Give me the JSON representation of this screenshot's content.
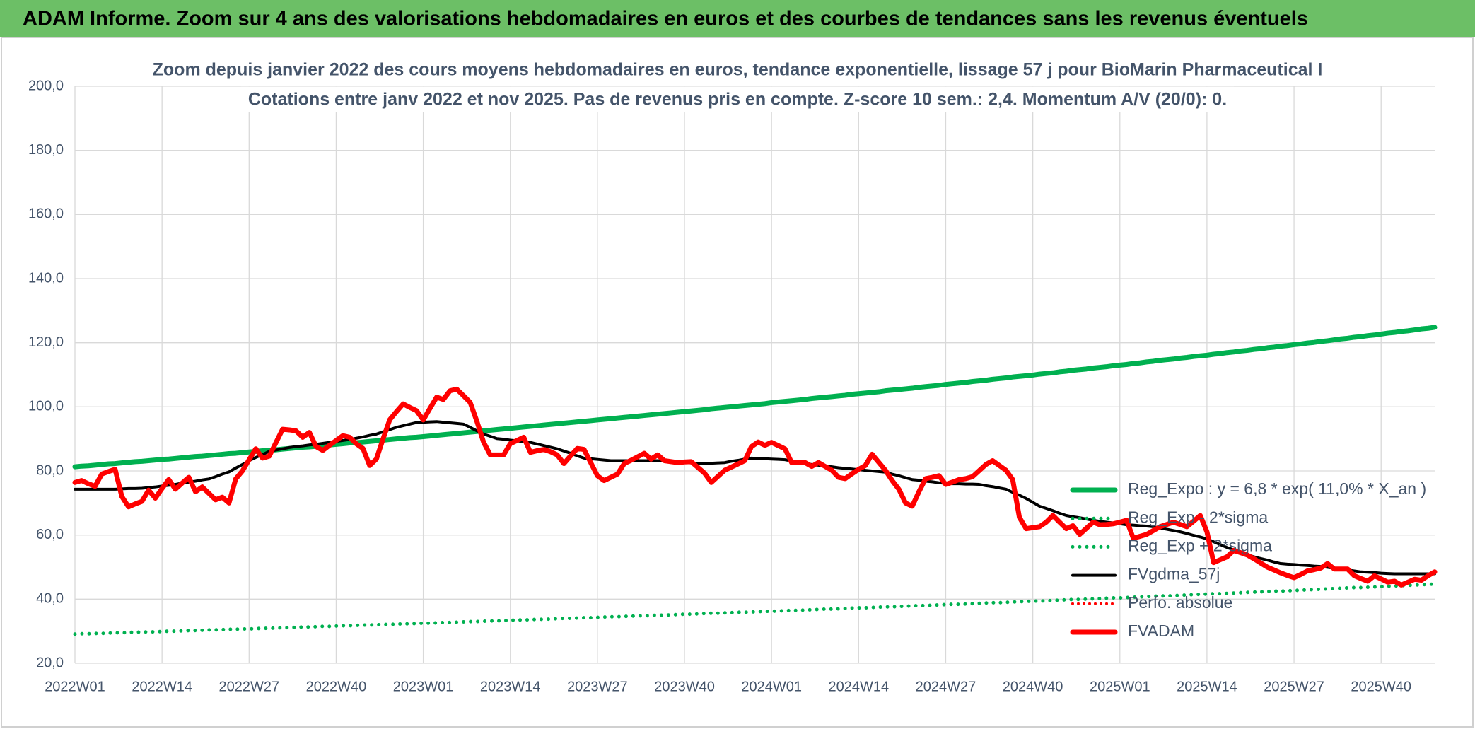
{
  "chart_data": {
    "type": "line",
    "title": "ADAM Informe. Zoom sur 4 ans des valorisations hebdomadaires en euros et des courbes de tendances sans les revenus éventuels",
    "subtitle": [
      "Zoom depuis janvier 2022 des cours moyens hebdomadaires en euros, tendance exponentielle, lissage 57 j pour BioMarin Pharmaceutical I",
      "Cotations entre janv 2022 et nov 2025. Pas de revenus pris en compte. Z-score 10 sem.: 2,4. Momentum A/V (20/0): 0."
    ],
    "ylim": [
      20,
      200
    ],
    "yticks": [
      {
        "value": 20,
        "label": "20,0"
      },
      {
        "value": 40,
        "label": "40,0"
      },
      {
        "value": 60,
        "label": "60,0"
      },
      {
        "value": 80,
        "label": "80,0"
      },
      {
        "value": 100,
        "label": "100,0"
      },
      {
        "value": 120,
        "label": "120,0"
      },
      {
        "value": 140,
        "label": "140,0"
      },
      {
        "value": 160,
        "label": "160,0"
      },
      {
        "value": 180,
        "label": "180,0"
      },
      {
        "value": 200,
        "label": "200,0"
      }
    ],
    "grid": true,
    "legend": "right",
    "categories": [
      "2022W01",
      null,
      null,
      null,
      null,
      null,
      null,
      null,
      null,
      null,
      null,
      null,
      null,
      "2022W14",
      null,
      null,
      null,
      null,
      null,
      null,
      null,
      null,
      null,
      null,
      null,
      null,
      "2022W27",
      null,
      null,
      null,
      null,
      null,
      null,
      null,
      null,
      null,
      null,
      null,
      null,
      "2022W40",
      null,
      null,
      null,
      null,
      null,
      null,
      null,
      null,
      null,
      null,
      null,
      null,
      "2023W01",
      null,
      null,
      null,
      null,
      null,
      null,
      null,
      null,
      null,
      null,
      null,
      null,
      "2023W14",
      null,
      null,
      null,
      null,
      null,
      null,
      null,
      null,
      null,
      null,
      null,
      null,
      "2023W27",
      null,
      null,
      null,
      null,
      null,
      null,
      null,
      null,
      null,
      null,
      null,
      null,
      "2023W40",
      null,
      null,
      null,
      null,
      null,
      null,
      null,
      null,
      null,
      null,
      null,
      null,
      "2024W01",
      null,
      null,
      null,
      null,
      null,
      null,
      null,
      null,
      null,
      null,
      null,
      null,
      "2024W14",
      null,
      null,
      null,
      null,
      null,
      null,
      null,
      null,
      null,
      null,
      null,
      null,
      "2024W27",
      null,
      null,
      null,
      null,
      null,
      null,
      null,
      null,
      null,
      null,
      null,
      null,
      "2024W40",
      null,
      null,
      null,
      null,
      null,
      null,
      null,
      null,
      null,
      null,
      null,
      null,
      "2025W01",
      null,
      null,
      null,
      null,
      null,
      null,
      null,
      null,
      null,
      null,
      null,
      null,
      "2025W14",
      null,
      null,
      null,
      null,
      null,
      null,
      null,
      null,
      null,
      null,
      null,
      null,
      "2025W27",
      null,
      null,
      null,
      null,
      null,
      null,
      null,
      null,
      null,
      null,
      null,
      null,
      "2025W40",
      null,
      null,
      null,
      null,
      null,
      null,
      null,
      null
    ],
    "series": [
      {
        "name": "Reg_Expo : y = 6,8 * exp( 11,0% *  X_an )",
        "color": "#00b050",
        "style": "solid",
        "width": 7,
        "values": [
          81.3,
          81.5,
          81.6,
          81.8,
          82.0,
          82.2,
          82.3,
          82.5,
          82.7,
          82.9,
          83.0,
          83.2,
          83.4,
          83.6,
          83.7,
          83.9,
          84.1,
          84.3,
          84.5,
          84.6,
          84.8,
          85.0,
          85.2,
          85.4,
          85.5,
          85.7,
          85.9,
          86.1,
          86.3,
          86.4,
          86.6,
          86.8,
          87.0,
          87.2,
          87.4,
          87.5,
          87.7,
          87.9,
          88.1,
          88.3,
          88.5,
          88.7,
          88.8,
          89.0,
          89.2,
          89.4,
          89.6,
          89.8,
          90.0,
          90.2,
          90.4,
          90.5,
          90.7,
          90.9,
          91.1,
          91.3,
          91.5,
          91.7,
          91.9,
          92.1,
          92.3,
          92.5,
          92.7,
          92.9,
          93.1,
          93.3,
          93.5,
          93.7,
          93.9,
          94.1,
          94.3,
          94.5,
          94.7,
          94.9,
          95.1,
          95.3,
          95.5,
          95.7,
          95.9,
          96.1,
          96.3,
          96.5,
          96.7,
          96.9,
          97.1,
          97.3,
          97.5,
          97.7,
          97.9,
          98.1,
          98.3,
          98.5,
          98.7,
          98.9,
          99.1,
          99.4,
          99.6,
          99.8,
          100.0,
          100.2,
          100.4,
          100.6,
          100.8,
          101.0,
          101.3,
          101.5,
          101.7,
          101.9,
          102.1,
          102.3,
          102.6,
          102.8,
          103.0,
          103.2,
          103.4,
          103.6,
          103.9,
          104.1,
          104.3,
          104.5,
          104.7,
          105.0,
          105.2,
          105.4,
          105.6,
          105.8,
          106.1,
          106.3,
          106.5,
          106.7,
          107.0,
          107.2,
          107.4,
          107.6,
          107.9,
          108.1,
          108.3,
          108.6,
          108.8,
          109.0,
          109.3,
          109.5,
          109.7,
          109.9,
          110.2,
          110.4,
          110.6,
          110.9,
          111.1,
          111.4,
          111.6,
          111.8,
          112.1,
          112.3,
          112.5,
          112.8,
          113.0,
          113.2,
          113.5,
          113.7,
          114.0,
          114.2,
          114.5,
          114.7,
          114.9,
          115.2,
          115.4,
          115.7,
          115.9,
          116.1,
          116.4,
          116.6,
          116.9,
          117.1,
          117.4,
          117.6,
          117.9,
          118.1,
          118.4,
          118.6,
          118.9,
          119.1,
          119.4,
          119.6,
          119.9,
          120.1,
          120.4,
          120.6,
          120.9,
          121.2,
          121.4,
          121.7,
          121.9,
          122.2,
          122.4,
          122.7,
          123.0,
          123.2,
          123.5,
          123.7,
          124.0,
          124.3,
          124.5,
          124.8
        ]
      },
      {
        "name": "Reg_Exp - 2*sigma",
        "color": "#00b050",
        "style": "dotted",
        "width": 5,
        "values": [
          29.1,
          29.2,
          29.2,
          29.3,
          29.3,
          29.4,
          29.5,
          29.5,
          29.6,
          29.7,
          29.7,
          29.8,
          29.8,
          29.9,
          30.0,
          30.0,
          30.1,
          30.2,
          30.2,
          30.3,
          30.4,
          30.4,
          30.5,
          30.6,
          30.6,
          30.7,
          30.7,
          30.8,
          30.9,
          30.9,
          31.0,
          31.1,
          31.1,
          31.2,
          31.3,
          31.3,
          31.4,
          31.5,
          31.5,
          31.6,
          31.7,
          31.7,
          31.8,
          31.9,
          31.9,
          32.0,
          32.1,
          32.1,
          32.2,
          32.3,
          32.3,
          32.4,
          32.5,
          32.5,
          32.6,
          32.7,
          32.7,
          32.8,
          32.9,
          33.0,
          33.0,
          33.1,
          33.2,
          33.2,
          33.3,
          33.4,
          33.5,
          33.5,
          33.6,
          33.7,
          33.7,
          33.8,
          33.9,
          34.0,
          34.0,
          34.1,
          34.2,
          34.2,
          34.3,
          34.4,
          34.5,
          34.5,
          34.6,
          34.7,
          34.8,
          34.8,
          34.9,
          35.0,
          35.0,
          35.1,
          35.2,
          35.3,
          35.3,
          35.4,
          35.5,
          35.6,
          35.6,
          35.7,
          35.8,
          35.9,
          35.9,
          36.0,
          36.1,
          36.2,
          36.2,
          36.3,
          36.4,
          36.5,
          36.5,
          36.6,
          36.7,
          36.8,
          36.9,
          36.9,
          37.0,
          37.1,
          37.2,
          37.3,
          37.3,
          37.4,
          37.5,
          37.6,
          37.6,
          37.7,
          37.8,
          37.9,
          38.0,
          38.0,
          38.1,
          38.2,
          38.3,
          38.4,
          38.4,
          38.5,
          38.6,
          38.7,
          38.8,
          38.9,
          38.9,
          39.0,
          39.1,
          39.2,
          39.3,
          39.4,
          39.4,
          39.5,
          39.6,
          39.7,
          39.8,
          39.9,
          39.9,
          40.0,
          40.1,
          40.2,
          40.3,
          40.4,
          40.4,
          40.5,
          40.6,
          40.7,
          40.8,
          40.9,
          41.0,
          41.0,
          41.1,
          41.2,
          41.3,
          41.4,
          41.5,
          41.6,
          41.7,
          41.7,
          41.8,
          41.9,
          42.0,
          42.1,
          42.2,
          42.3,
          42.4,
          42.5,
          42.5,
          42.6,
          42.7,
          42.8,
          42.9,
          43.0,
          43.1,
          43.2,
          43.3,
          43.4,
          43.5,
          43.6,
          43.6,
          43.7,
          43.8,
          43.9,
          44.0,
          44.1,
          44.2,
          44.3,
          44.4,
          44.5,
          44.6,
          44.7
        ]
      },
      {
        "name": "Reg_Exp + 2*sigma",
        "color": "#00b050",
        "style": "dotted",
        "width": 5
      },
      {
        "name": "FVgdma_57j",
        "color": "#000000",
        "style": "solid",
        "width": 4,
        "values": [
          74.3,
          74.3,
          74.3,
          74.3,
          74.3,
          74.3,
          74.3,
          74.4,
          74.5,
          74.5,
          74.6,
          74.8,
          75.0,
          75.3,
          75.5,
          75.8,
          76.2,
          76.5,
          76.8,
          77.2,
          77.5,
          78.2,
          79.0,
          79.7,
          80.9,
          82.0,
          83.2,
          84.2,
          85.1,
          86.1,
          86.5,
          86.9,
          87.3,
          87.6,
          87.8,
          88.1,
          88.3,
          88.6,
          88.9,
          89.2,
          89.5,
          89.8,
          90.2,
          90.6,
          91.1,
          91.5,
          92.2,
          92.9,
          93.6,
          94.1,
          94.6,
          95.1,
          95.2,
          95.3,
          95.4,
          95.2,
          95.0,
          94.8,
          94.6,
          93.6,
          92.5,
          91.5,
          90.8,
          90.1,
          89.9,
          89.6,
          89.4,
          89.1,
          88.9,
          88.4,
          87.9,
          87.4,
          86.9,
          86.2,
          85.5,
          84.7,
          84.0,
          83.8,
          83.6,
          83.4,
          83.2,
          83.2,
          83.2,
          83.2,
          83.2,
          83.2,
          83.2,
          83.2,
          83.1,
          82.9,
          82.8,
          82.6,
          82.5,
          82.3,
          82.4,
          82.4,
          82.5,
          82.6,
          83.0,
          83.3,
          83.7,
          84.0,
          83.9,
          83.8,
          83.7,
          83.6,
          83.5,
          83.1,
          82.8,
          82.4,
          82.0,
          81.8,
          81.5,
          81.3,
          81.0,
          80.8,
          80.6,
          80.4,
          80.2,
          80.0,
          79.8,
          79.6,
          79.0,
          78.5,
          77.9,
          77.3,
          77.1,
          76.8,
          76.6,
          76.3,
          76.1,
          76.0,
          76.0,
          75.9,
          75.9,
          75.8,
          75.4,
          75.1,
          74.7,
          74.3,
          73.3,
          72.4,
          71.4,
          70.2,
          69.0,
          68.3,
          67.6,
          66.8,
          66.1,
          65.7,
          65.4,
          65.0,
          64.6,
          64.3,
          64.0,
          63.8,
          63.5,
          63.2,
          63.1,
          62.9,
          62.8,
          62.6,
          62.2,
          61.8,
          61.4,
          61.0,
          60.5,
          59.9,
          59.4,
          58.8,
          57.9,
          57.0,
          56.1,
          55.4,
          54.7,
          53.9,
          53.2,
          52.7,
          52.2,
          51.6,
          51.1,
          50.9,
          50.8,
          50.6,
          50.5,
          50.3,
          50.2,
          49.9,
          49.6,
          49.4,
          49.1,
          48.8,
          48.5,
          48.4,
          48.3,
          48.1,
          48.0,
          47.9,
          47.9,
          47.9,
          47.9,
          47.9,
          47.9,
          47.9
        ]
      },
      {
        "name": "Perfo. absolue",
        "color": "#ff0000",
        "style": "dotted",
        "width": 4
      },
      {
        "name": "FVADAM",
        "color": "#ff0000",
        "style": "solid",
        "width": 7,
        "values": [
          76.4,
          77,
          76,
          75.2,
          79,
          79.8,
          80.5,
          72,
          68.8,
          69.7,
          70.5,
          74,
          71.5,
          74.5,
          77.3,
          74.3,
          76.2,
          78,
          73.5,
          75,
          73,
          71,
          71.8,
          70,
          77.5,
          80,
          83.5,
          86.9,
          84,
          84.6,
          88.8,
          93,
          92.8,
          92.5,
          90.5,
          92,
          87.6,
          86.4,
          88,
          89.5,
          91,
          90.5,
          88.5,
          87,
          81.7,
          83.7,
          90,
          96,
          98.5,
          100.9,
          99.8,
          98.8,
          95.9,
          99.5,
          103,
          102.3,
          105,
          105.5,
          103.5,
          101.4,
          95.5,
          89,
          85,
          85,
          85,
          88.5,
          89.5,
          90.5,
          85.8,
          86.3,
          86.7,
          86,
          85,
          82.3,
          84.7,
          87,
          86.7,
          82.6,
          78.5,
          77,
          78,
          79,
          82.3,
          83.3,
          84.4,
          85.5,
          83.7,
          85,
          83.2,
          82.9,
          82.6,
          82.8,
          82.9,
          81.1,
          79.3,
          76.4,
          78.3,
          80.2,
          81.2,
          82.2,
          83.2,
          87.6,
          89,
          88,
          88.9,
          87.9,
          86.9,
          82.6,
          82.6,
          82.6,
          81.4,
          82.6,
          81.4,
          80.2,
          78,
          77.6,
          79.1,
          80.5,
          81.7,
          85.2,
          82.7,
          80.2,
          77,
          74.3,
          70,
          69,
          73.5,
          77.6,
          78,
          78.5,
          75.8,
          76.5,
          77.3,
          77.6,
          78.2,
          80.1,
          82,
          83.2,
          81.7,
          80.2,
          77.3,
          65.5,
          62,
          62.3,
          62.6,
          64,
          66.1,
          64,
          62,
          62.9,
          60.2,
          62.1,
          64,
          63.2,
          63.3,
          63.5,
          64,
          64.6,
          59,
          59.6,
          60.2,
          61.4,
          62.6,
          63.3,
          64,
          63.3,
          62.6,
          64.3,
          66.1,
          61,
          51.4,
          52.3,
          53.2,
          55.2,
          54.5,
          53.8,
          52.6,
          51.3,
          50,
          49.1,
          48.2,
          47.4,
          46.7,
          47.7,
          48.8,
          49.2,
          49.7,
          51.1,
          49.4,
          49.4,
          49.4,
          47.3,
          46.4,
          45.6,
          47.3,
          46.3,
          45.3,
          45.6,
          44.4,
          45.3,
          46.2,
          45.9,
          47.3,
          48.5
        ]
      }
    ]
  }
}
